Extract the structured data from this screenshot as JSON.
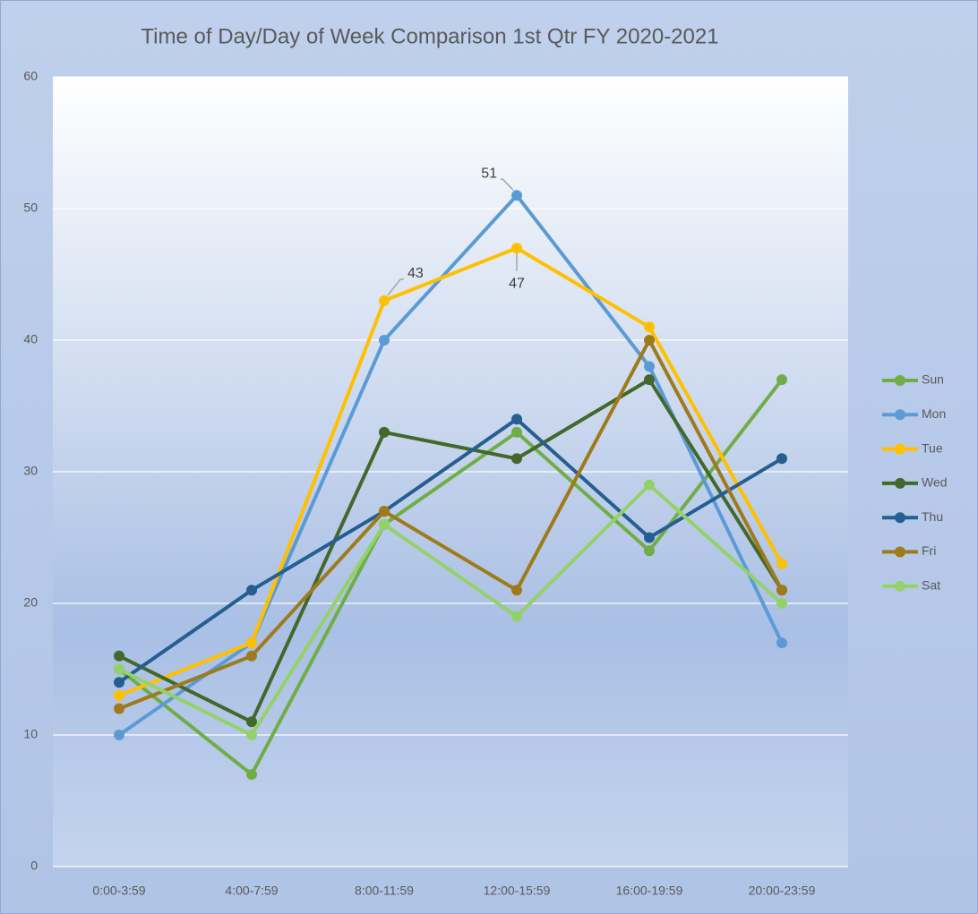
{
  "chart_data": {
    "type": "line",
    "title": "Time of Day/Day of Week Comparison 1st Qtr FY 2020-2021",
    "categories": [
      "0:00-3:59",
      "4:00-7:59",
      "8:00-11:59",
      "12:00-15:59",
      "16:00-19:59",
      "20:00-23:59"
    ],
    "series": [
      {
        "name": "Sun",
        "color": "#70ad47",
        "values": [
          15,
          7,
          26,
          33,
          24,
          37
        ]
      },
      {
        "name": "Mon",
        "color": "#5b9bd5",
        "values": [
          10,
          17,
          40,
          51,
          38,
          17
        ],
        "value_labels": [
          null,
          null,
          null,
          "51",
          null,
          null
        ]
      },
      {
        "name": "Tue",
        "color": "#ffc000",
        "values": [
          13,
          17,
          43,
          47,
          41,
          23
        ],
        "value_labels": [
          null,
          null,
          "43",
          "47",
          null,
          null
        ]
      },
      {
        "name": "Wed",
        "color": "#43682b",
        "values": [
          16,
          11,
          33,
          31,
          37,
          21
        ]
      },
      {
        "name": "Thu",
        "color": "#255e91",
        "values": [
          14,
          21,
          27,
          34,
          25,
          31
        ]
      },
      {
        "name": "Fri",
        "color": "#9e7a1a",
        "values": [
          12,
          16,
          27,
          21,
          40,
          21
        ]
      },
      {
        "name": "Sat",
        "color": "#95d16a",
        "values": [
          15,
          10,
          26,
          19,
          29,
          20
        ]
      }
    ],
    "ylim": [
      0,
      60
    ],
    "yticks": [
      0,
      10,
      20,
      30,
      40,
      50,
      60
    ],
    "grid": true,
    "legend": "right"
  }
}
